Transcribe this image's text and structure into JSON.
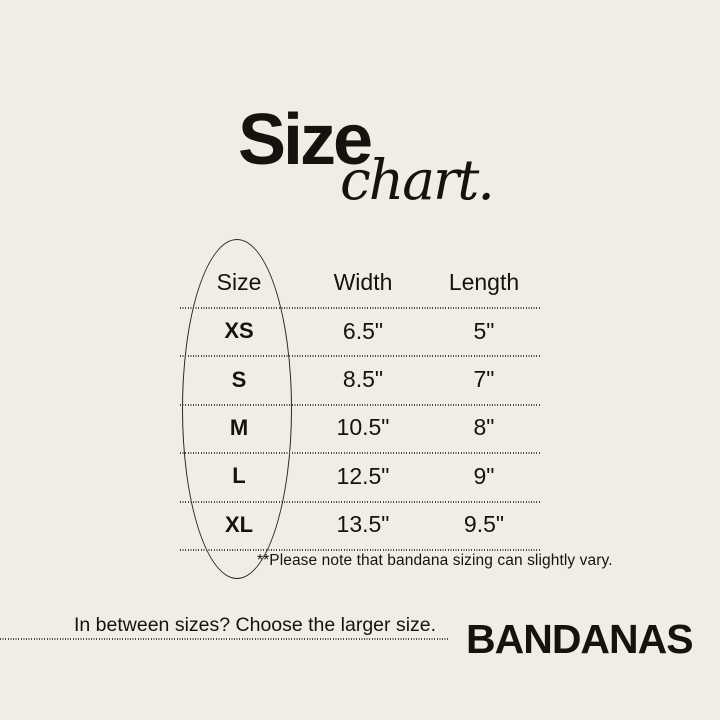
{
  "colors": {
    "background": "#f2ede4",
    "ink": "#16130f",
    "dotted_line": "#4d4740"
  },
  "title": {
    "main": "Size",
    "script": "chart."
  },
  "chart_data": {
    "type": "table",
    "title": "Size chart.",
    "columns": [
      "Size",
      "Width",
      "Length"
    ],
    "rows": [
      [
        "XS",
        "6.5\"",
        "5\""
      ],
      [
        "S",
        "8.5\"",
        "7\""
      ],
      [
        "M",
        "10.5\"",
        "8\""
      ],
      [
        "L",
        "12.5\"",
        "9\""
      ],
      [
        "XL",
        "13.5\"",
        "9.5\""
      ]
    ]
  },
  "table": {
    "headers": [
      "Size",
      "Width",
      "Length"
    ],
    "rows": [
      {
        "size": "XS",
        "width": "6.5\"",
        "length": "5\""
      },
      {
        "size": "S",
        "width": "8.5\"",
        "length": "7\""
      },
      {
        "size": "M",
        "width": "10.5\"",
        "length": "8\""
      },
      {
        "size": "L",
        "width": "12.5\"",
        "length": "9\""
      },
      {
        "size": "XL",
        "width": "13.5\"",
        "length": "9.5\""
      }
    ],
    "note": "**Please note that bandana sizing can slightly vary."
  },
  "footer": {
    "tip": "In between sizes? Choose the larger size.",
    "brand": "BANDANAS"
  }
}
